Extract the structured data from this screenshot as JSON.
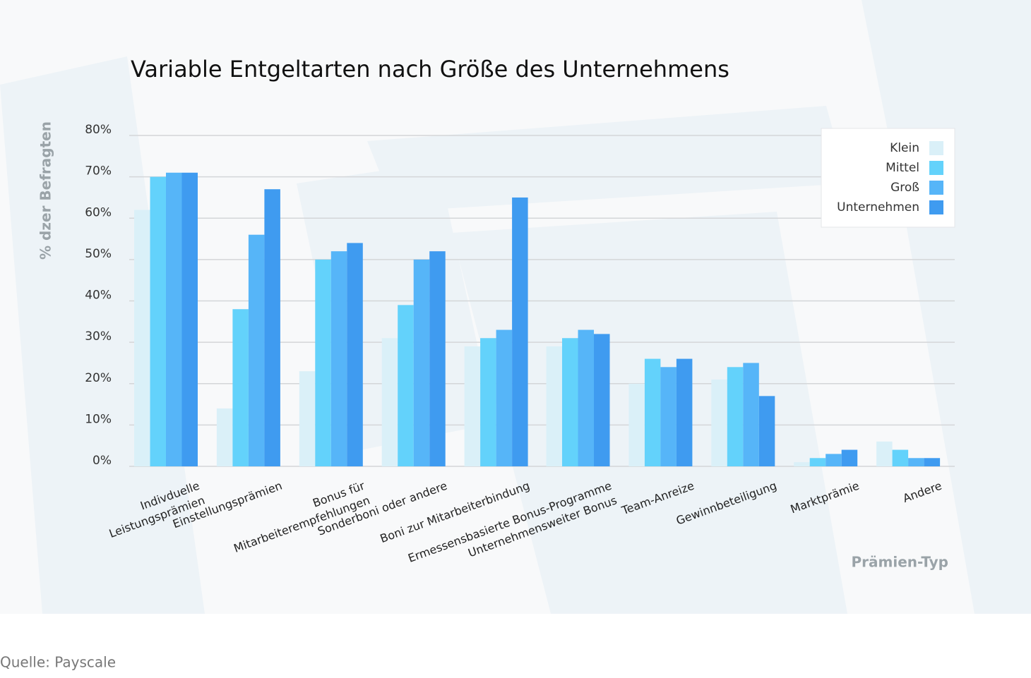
{
  "chart_data": {
    "type": "bar",
    "title": "Variable Entgeltarten nach Größe des Unternehmens",
    "y_label": "% dzer Befragten",
    "x_label": "Prämien-Typ",
    "source": "Quelle: Payscale",
    "categories": [
      [
        "Indivduelle",
        "Leistungsprämien"
      ],
      [
        "Einstellungsprämien"
      ],
      [
        "Bonus für",
        "Mitarbeiterempfehlungen"
      ],
      [
        "Sonderboni oder andere"
      ],
      [
        "Boni zur Mitarbeiterbindung"
      ],
      [
        "Ermessensbasierte Bonus-Programme",
        "Unternehmensweiter Bonus"
      ],
      [
        "Team-Anreize"
      ],
      [
        "Gewinnbeteiligung"
      ],
      [
        "Marktprämie"
      ],
      [
        "Andere"
      ]
    ],
    "series": [
      {
        "name": "Klein",
        "color": "#daf0f8",
        "values": [
          62,
          14,
          23,
          31,
          29,
          29,
          20,
          21,
          1,
          6
        ]
      },
      {
        "name": "Mittel",
        "color": "#63d2fb",
        "values": [
          70,
          38,
          50,
          39,
          31,
          31,
          26,
          24,
          2,
          4
        ]
      },
      {
        "name": "Groß",
        "color": "#56b5f8",
        "values": [
          71,
          56,
          52,
          50,
          33,
          33,
          24,
          25,
          3,
          2
        ]
      },
      {
        "name": "Unternehmen",
        "color": "#3f9bf0",
        "values": [
          71,
          67,
          54,
          52,
          65,
          32,
          26,
          17,
          4,
          2
        ]
      }
    ],
    "ylim": [
      0,
      80
    ],
    "yticks": [
      {
        "value": 0,
        "label": "0%"
      },
      {
        "value": 10,
        "label": "10%"
      },
      {
        "value": 20,
        "label": "20%"
      },
      {
        "value": 30,
        "label": "30%"
      },
      {
        "value": 40,
        "label": "40%"
      },
      {
        "value": 50,
        "label": "50%"
      },
      {
        "value": 60,
        "label": "60%"
      },
      {
        "value": 70,
        "label": "70%"
      },
      {
        "value": 80,
        "label": "80%"
      }
    ],
    "grid": true,
    "legend": "top-right"
  }
}
